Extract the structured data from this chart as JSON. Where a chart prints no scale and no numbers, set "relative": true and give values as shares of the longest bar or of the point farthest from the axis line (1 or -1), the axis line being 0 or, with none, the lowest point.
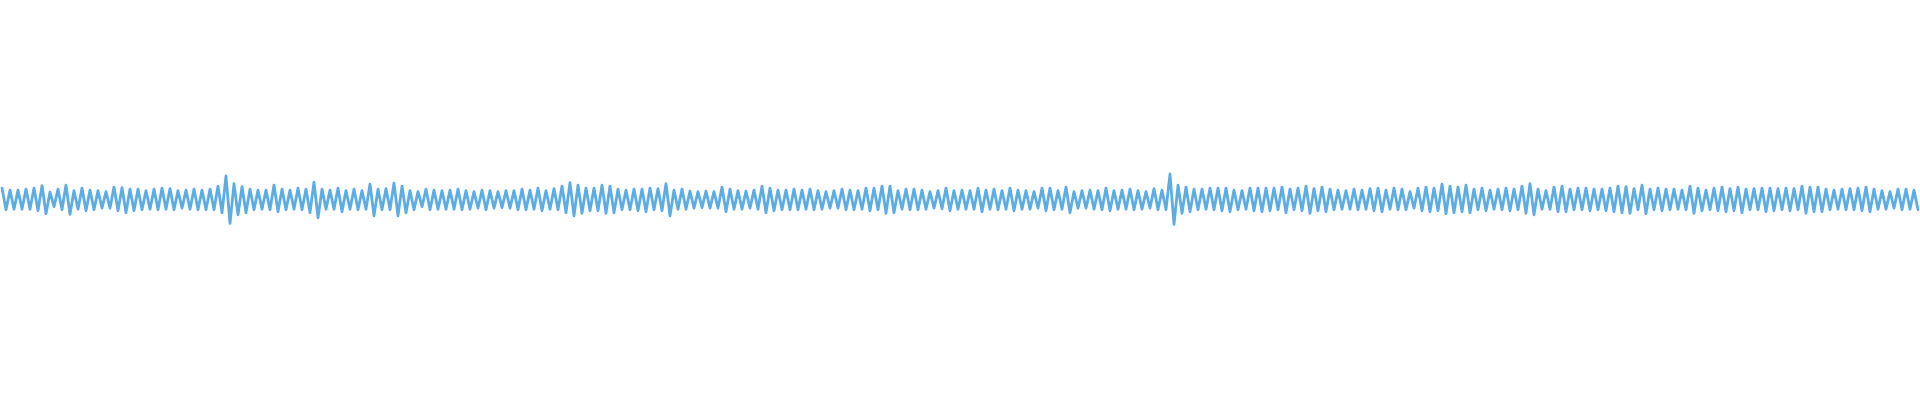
{
  "chart_data": {
    "type": "line",
    "relative": true,
    "color": "#5dade2",
    "categories": [
      null,
      null,
      null,
      null,
      null,
      null,
      null,
      null,
      null,
      null,
      null,
      null,
      null,
      null,
      null,
      null,
      null,
      null,
      null,
      null,
      null,
      null,
      null,
      null,
      null,
      null,
      null,
      null,
      null,
      null,
      null,
      null,
      null,
      null,
      null,
      null,
      null,
      null,
      null,
      null,
      null,
      null,
      null,
      null,
      null,
      null,
      null,
      null,
      null,
      null,
      null,
      null,
      null,
      null,
      null,
      null,
      null,
      null,
      null,
      null,
      null,
      null,
      null,
      null,
      null,
      null,
      null,
      null,
      null,
      null,
      null,
      null,
      null,
      null,
      null,
      null,
      null,
      null,
      null,
      null,
      null,
      null,
      null,
      null,
      null,
      null,
      null,
      null,
      null,
      null,
      null,
      null,
      null,
      null,
      null,
      null,
      null,
      null,
      null,
      null,
      null,
      null,
      null,
      null,
      null,
      null,
      null,
      null,
      null,
      null,
      null,
      null,
      null,
      null,
      null,
      null,
      null,
      null,
      null,
      null,
      null,
      null,
      null,
      null,
      null,
      null,
      null,
      null,
      null,
      null,
      null,
      null,
      null,
      null,
      null,
      null,
      null,
      null,
      null,
      null,
      null,
      null,
      null,
      null,
      null,
      null,
      null,
      null,
      null,
      null,
      null,
      null,
      null,
      null,
      null,
      null,
      null,
      null,
      null,
      null,
      null,
      null,
      null,
      null,
      null,
      null,
      null,
      null,
      null,
      null,
      null,
      null,
      null,
      null,
      null,
      null,
      null,
      null,
      null,
      null,
      null,
      null,
      null,
      null,
      null,
      null,
      null,
      null,
      null,
      null,
      null,
      null,
      null,
      null,
      null,
      null,
      null,
      null,
      null,
      null,
      null,
      null,
      null,
      null,
      null,
      null,
      null,
      null,
      null,
      null,
      null,
      null,
      null,
      null,
      null,
      null,
      null,
      null,
      null,
      null,
      null,
      null,
      null,
      null,
      null,
      null,
      null,
      null,
      null,
      null,
      null,
      null,
      null,
      null,
      null,
      null,
      null,
      null,
      null,
      null,
      null,
      null,
      null,
      null,
      null,
      null,
      null,
      null,
      null,
      null,
      null,
      null,
      null,
      null,
      null,
      null,
      null,
      null,
      null,
      null,
      null,
      null,
      null,
      null,
      null,
      null,
      null,
      null,
      null,
      null,
      null,
      null,
      null,
      null,
      null,
      null,
      null,
      null,
      null,
      null,
      null,
      null,
      null,
      null,
      null,
      null,
      null,
      null,
      null,
      null,
      null,
      null,
      null,
      null,
      null,
      null,
      null,
      null,
      null,
      null,
      null,
      null,
      null,
      null,
      null,
      null,
      null,
      null,
      null,
      null,
      null,
      null,
      null,
      null,
      null,
      null,
      null,
      null,
      null,
      null,
      null,
      null,
      null,
      null,
      null,
      null,
      null,
      null,
      null,
      null,
      null,
      null,
      null,
      null,
      null,
      null,
      null,
      null,
      null,
      null,
      null,
      null,
      null,
      null,
      null,
      null,
      null,
      null,
      null,
      null,
      null,
      null,
      null,
      null,
      null,
      null,
      null,
      null,
      null,
      null,
      null,
      null,
      null,
      null,
      null,
      null,
      null,
      null,
      null,
      null,
      null,
      null,
      null,
      null,
      null,
      null,
      null,
      null,
      null,
      null,
      null,
      null,
      null,
      null,
      null,
      null,
      null,
      null,
      null,
      null,
      null,
      null,
      null,
      null,
      null,
      null,
      null,
      null,
      null,
      null,
      null,
      null,
      null,
      null,
      null,
      null,
      null,
      null,
      null,
      null,
      null,
      null,
      null,
      null,
      null,
      null,
      null,
      null,
      null,
      null,
      null,
      null,
      null,
      null,
      null,
      null,
      null,
      null,
      null,
      null,
      null,
      null,
      null,
      null,
      null,
      null,
      null,
      null,
      null,
      null,
      null,
      null,
      null,
      null,
      null,
      null,
      null,
      null,
      null,
      null,
      null,
      null,
      null,
      null,
      null,
      null,
      null,
      null,
      null,
      null,
      null,
      null,
      null,
      null,
      null,
      null,
      null,
      null,
      null,
      null,
      null,
      null,
      null,
      null,
      null,
      null,
      null,
      null,
      null,
      null
    ],
    "values": [
      0.72,
      0.29,
      0.68,
      0.3,
      0.68,
      0.3,
      0.7,
      0.3,
      0.72,
      0.27,
      0.77,
      0.21,
      0.64,
      0.35,
      0.7,
      0.29,
      0.78,
      0.2,
      0.67,
      0.3,
      0.72,
      0.27,
      0.68,
      0.29,
      0.67,
      0.32,
      0.65,
      0.32,
      0.74,
      0.27,
      0.73,
      0.23,
      0.7,
      0.27,
      0.7,
      0.29,
      0.67,
      0.3,
      0.7,
      0.29,
      0.72,
      0.3,
      0.71,
      0.29,
      0.67,
      0.32,
      0.68,
      0.3,
      0.7,
      0.29,
      0.68,
      0.29,
      0.7,
      0.29,
      0.76,
      0.23,
      0.96,
      0.02,
      0.81,
      0.19,
      0.75,
      0.23,
      0.7,
      0.29,
      0.68,
      0.3,
      0.68,
      0.29,
      0.78,
      0.25,
      0.7,
      0.29,
      0.68,
      0.3,
      0.72,
      0.29,
      0.7,
      0.23,
      0.84,
      0.13,
      0.7,
      0.3,
      0.68,
      0.3,
      0.72,
      0.25,
      0.67,
      0.3,
      0.7,
      0.29,
      0.67,
      0.3,
      0.8,
      0.17,
      0.7,
      0.29,
      0.71,
      0.29,
      0.82,
      0.17,
      0.76,
      0.23,
      0.67,
      0.29,
      0.65,
      0.35,
      0.7,
      0.29,
      0.68,
      0.3,
      0.67,
      0.3,
      0.68,
      0.3,
      0.7,
      0.29,
      0.67,
      0.3,
      0.65,
      0.32,
      0.68,
      0.29,
      0.67,
      0.32,
      0.65,
      0.33,
      0.67,
      0.32,
      0.67,
      0.29,
      0.7,
      0.29,
      0.68,
      0.3,
      0.72,
      0.27,
      0.67,
      0.3,
      0.71,
      0.29,
      0.76,
      0.23,
      0.83,
      0.17,
      0.78,
      0.22,
      0.72,
      0.27,
      0.72,
      0.27,
      0.78,
      0.22,
      0.76,
      0.23,
      0.7,
      0.29,
      0.68,
      0.29,
      0.7,
      0.27,
      0.7,
      0.25,
      0.72,
      0.29,
      0.71,
      0.27,
      0.81,
      0.17,
      0.68,
      0.3,
      0.7,
      0.3,
      0.66,
      0.32,
      0.65,
      0.33,
      0.66,
      0.32,
      0.65,
      0.32,
      0.74,
      0.25,
      0.7,
      0.3,
      0.67,
      0.3,
      0.66,
      0.32,
      0.68,
      0.3,
      0.76,
      0.23,
      0.72,
      0.27,
      0.68,
      0.29,
      0.68,
      0.29,
      0.7,
      0.29,
      0.68,
      0.3,
      0.7,
      0.29,
      0.67,
      0.3,
      0.65,
      0.32,
      0.67,
      0.32,
      0.7,
      0.29,
      0.68,
      0.29,
      0.67,
      0.3,
      0.72,
      0.27,
      0.72,
      0.29,
      0.76,
      0.22,
      0.76,
      0.23,
      0.67,
      0.3,
      0.7,
      0.29,
      0.7,
      0.29,
      0.68,
      0.3,
      0.65,
      0.32,
      0.67,
      0.31,
      0.72,
      0.27,
      0.67,
      0.3,
      0.68,
      0.3,
      0.67,
      0.3,
      0.72,
      0.25,
      0.68,
      0.3,
      0.7,
      0.29,
      0.67,
      0.3,
      0.72,
      0.27,
      0.68,
      0.3,
      0.67,
      0.3,
      0.65,
      0.32,
      0.72,
      0.27,
      0.72,
      0.29,
      0.67,
      0.3,
      0.74,
      0.23,
      0.65,
      0.32,
      0.67,
      0.32,
      0.68,
      0.3,
      0.67,
      0.29,
      0.72,
      0.27,
      0.67,
      0.3,
      0.68,
      0.3,
      0.7,
      0.29,
      0.67,
      0.3,
      0.65,
      0.32,
      0.71,
      0.29,
      0.68,
      0.29,
      1.0,
      0.0,
      0.78,
      0.22,
      0.74,
      0.25,
      0.7,
      0.29,
      0.7,
      0.3,
      0.72,
      0.29,
      0.72,
      0.27,
      0.72,
      0.25,
      0.68,
      0.29,
      0.67,
      0.3,
      0.72,
      0.27,
      0.72,
      0.25,
      0.72,
      0.27,
      0.72,
      0.29,
      0.74,
      0.23,
      0.7,
      0.29,
      0.72,
      0.27,
      0.76,
      0.22,
      0.71,
      0.27,
      0.74,
      0.25,
      0.7,
      0.29,
      0.68,
      0.3,
      0.67,
      0.3,
      0.7,
      0.29,
      0.68,
      0.3,
      0.71,
      0.27,
      0.72,
      0.25,
      0.68,
      0.3,
      0.72,
      0.29,
      0.7,
      0.29,
      0.65,
      0.32,
      0.72,
      0.27,
      0.74,
      0.25,
      0.72,
      0.27,
      0.8,
      0.21,
      0.76,
      0.23,
      0.74,
      0.25,
      0.78,
      0.23,
      0.7,
      0.29,
      0.72,
      0.27,
      0.68,
      0.3,
      0.7,
      0.29,
      0.72,
      0.27,
      0.7,
      0.29,
      0.76,
      0.22,
      0.81,
      0.19,
      0.7,
      0.3,
      0.67,
      0.3,
      0.74,
      0.25,
      0.76,
      0.25,
      0.7,
      0.29,
      0.72,
      0.29,
      0.72,
      0.27,
      0.7,
      0.29,
      0.7,
      0.27,
      0.72,
      0.25,
      0.76,
      0.23,
      0.75,
      0.22,
      0.71,
      0.29,
      0.78,
      0.21,
      0.7,
      0.29,
      0.72,
      0.27,
      0.7,
      0.29,
      0.7,
      0.3,
      0.68,
      0.29,
      0.76,
      0.22,
      0.72,
      0.27,
      0.68,
      0.29,
      0.72,
      0.27,
      0.74,
      0.25,
      0.71,
      0.27,
      0.74,
      0.23,
      0.7,
      0.29,
      0.71,
      0.29,
      0.72,
      0.25,
      0.72,
      0.27,
      0.71,
      0.29,
      0.72,
      0.27,
      0.71,
      0.29,
      0.76,
      0.22,
      0.74,
      0.25,
      0.74,
      0.25,
      0.7,
      0.29,
      0.68,
      0.3,
      0.7,
      0.29,
      0.71,
      0.29,
      0.72,
      0.27,
      0.74,
      0.25,
      0.7,
      0.3,
      0.67,
      0.3,
      0.65,
      0.32,
      0.7,
      0.29,
      0.7,
      0.3,
      0.68,
      0.29
    ]
  }
}
